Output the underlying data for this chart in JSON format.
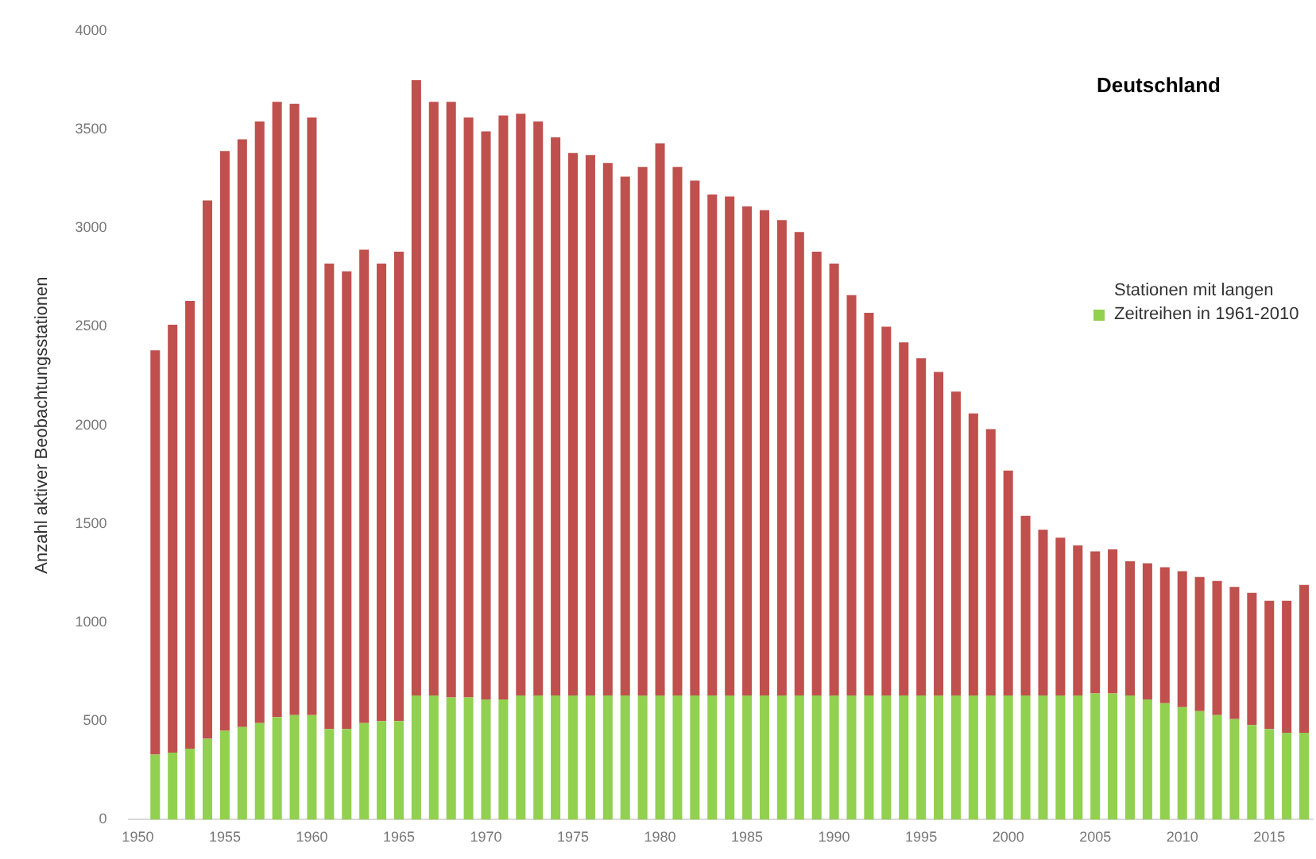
{
  "chart_data": {
    "type": "bar",
    "title": "Deutschland",
    "ylabel": "Anzahl aktiver Beobachtungsstationen",
    "stacked": true,
    "legend": "right",
    "grid": false,
    "categories": [
      "1950",
      null,
      null,
      null,
      null,
      "1955",
      null,
      null,
      null,
      null,
      "1960",
      null,
      null,
      null,
      null,
      "1965",
      null,
      null,
      null,
      null,
      "1970",
      null,
      null,
      null,
      null,
      "1975",
      null,
      null,
      null,
      null,
      "1980",
      null,
      null,
      null,
      null,
      "1985",
      null,
      null,
      null,
      null,
      "1990",
      null,
      null,
      null,
      null,
      "1995",
      null,
      null,
      null,
      null,
      "2000",
      null,
      null,
      null,
      null,
      "2005",
      null,
      null,
      null,
      null,
      "2010",
      null,
      null,
      null,
      null,
      "2015",
      null,
      null
    ],
    "ylim": [
      0,
      4000
    ],
    "yticks": [
      0,
      500,
      1000,
      1500,
      2000,
      2500,
      3000,
      3500,
      4000
    ],
    "series": [
      {
        "name": "Stationen mit langen Zeitreihen in 1961-2010",
        "color": "#92d050",
        "values": [
          null,
          330,
          340,
          360,
          410,
          450,
          470,
          490,
          520,
          530,
          530,
          460,
          460,
          490,
          500,
          500,
          630,
          630,
          620,
          620,
          610,
          610,
          630,
          630,
          630,
          630,
          630,
          630,
          630,
          630,
          630,
          630,
          630,
          630,
          630,
          630,
          630,
          630,
          630,
          630,
          630,
          630,
          630,
          630,
          630,
          630,
          630,
          630,
          630,
          630,
          630,
          630,
          630,
          630,
          630,
          640,
          640,
          630,
          610,
          590,
          570,
          550,
          530,
          510,
          480,
          460,
          440,
          440
        ]
      },
      {
        "color": "#c0504d",
        "values": [
          null,
          2050,
          2170,
          2270,
          2730,
          2940,
          2980,
          3050,
          3120,
          3100,
          3030,
          2360,
          2320,
          2400,
          2320,
          2380,
          3120,
          3010,
          3020,
          2940,
          2880,
          2960,
          2950,
          2910,
          2830,
          2750,
          2740,
          2700,
          2630,
          2680,
          2800,
          2680,
          2610,
          2540,
          2530,
          2480,
          2460,
          2410,
          2350,
          2250,
          2190,
          2030,
          1940,
          1870,
          1790,
          1710,
          1640,
          1540,
          1430,
          1350,
          1140,
          910,
          840,
          800,
          760,
          720,
          730,
          680,
          690,
          690,
          690,
          680,
          680,
          670,
          670,
          650,
          670,
          750
        ]
      }
    ]
  }
}
